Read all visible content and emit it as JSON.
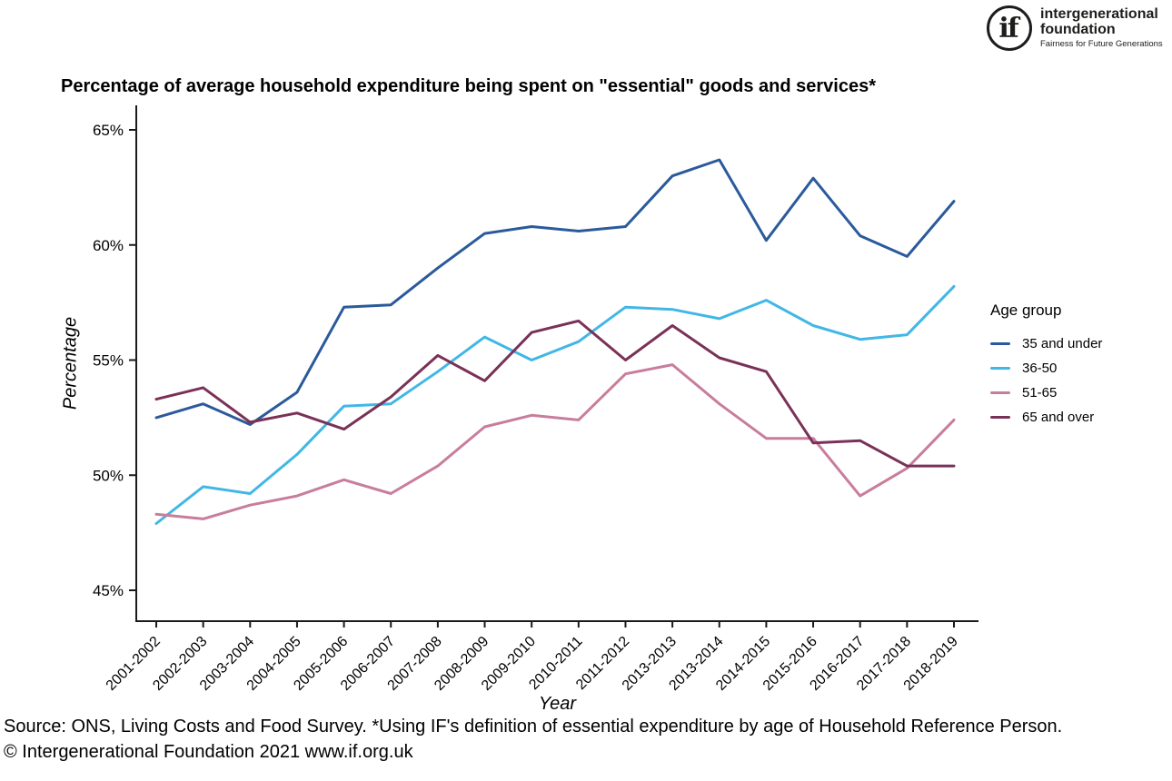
{
  "logo": {
    "mark": "if",
    "name_line1": "intergenerational",
    "name_line2": "foundation",
    "tagline": "Fairness for Future Generations"
  },
  "footer": {
    "source": "Source: ONS, Living Costs and Food Survey. *Using IF's definition of essential expenditure by age of Household Reference Person.",
    "copyright": "© Intergenerational Foundation 2021 www.if.org.uk"
  },
  "chart_data": {
    "type": "line",
    "title": "Percentage of average household expenditure being spent on \"essential\" goods and services*",
    "xlabel": "Year",
    "ylabel": "Percentage",
    "ylim": [
      45,
      65
    ],
    "ytick_values": [
      65,
      60,
      55,
      50,
      45
    ],
    "ytick_labels": [
      "65%",
      "60%",
      "55%",
      "50%",
      "45%"
    ],
    "grid": false,
    "legend_title": "Age group",
    "legend_position": "right",
    "categories": [
      "2001-2002",
      "2002-2003",
      "2003-2004",
      "2004-2005",
      "2005-2006",
      "2006-2007",
      "2007-2008",
      "2008-2009",
      "2009-2010",
      "2010-2011",
      "2011-2012",
      "2013-2013",
      "2013-2014",
      "2014-2015",
      "2015-2016",
      "2016-2017",
      "2017-2018",
      "2018-2019"
    ],
    "series": [
      {
        "name": "35 and under",
        "color": "#2b5a9b",
        "values": [
          52.5,
          53.1,
          52.2,
          53.6,
          57.3,
          57.4,
          59.0,
          60.5,
          60.8,
          60.6,
          60.8,
          63.0,
          63.7,
          60.2,
          62.9,
          60.4,
          59.5,
          61.9
        ]
      },
      {
        "name": "36-50",
        "color": "#41b7e6",
        "values": [
          47.9,
          49.5,
          49.2,
          50.9,
          53.0,
          53.1,
          54.5,
          56.0,
          55.0,
          55.8,
          57.3,
          57.2,
          56.8,
          57.6,
          56.5,
          55.9,
          56.1,
          58.2
        ]
      },
      {
        "name": "51-65",
        "color": "#c87d9c",
        "values": [
          48.3,
          48.1,
          48.7,
          49.1,
          49.8,
          49.2,
          50.4,
          52.1,
          52.6,
          52.4,
          54.4,
          54.8,
          53.1,
          51.6,
          51.6,
          49.1,
          50.3,
          52.4
        ]
      },
      {
        "name": "65 and over",
        "color": "#7a3157",
        "values": [
          53.3,
          53.8,
          52.3,
          52.7,
          52.0,
          53.4,
          55.2,
          54.1,
          56.2,
          56.7,
          55.0,
          56.5,
          55.1,
          54.5,
          51.4,
          51.5,
          50.4,
          50.4
        ]
      }
    ]
  }
}
